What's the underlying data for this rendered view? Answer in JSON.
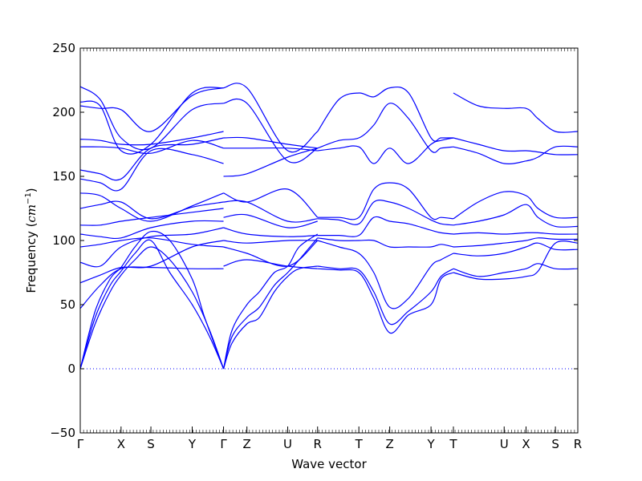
{
  "chart_data": {
    "type": "line",
    "title": "",
    "xlabel": "Wave vector",
    "ylabel": "Frequency",
    "ylabel_unit": "cm",
    "ylabel_unit_exponent": "−1",
    "ylim": [
      -50,
      250
    ],
    "yticks": [
      -50,
      0,
      50,
      100,
      150,
      200,
      250
    ],
    "ytick_labels": [
      "−50",
      "0",
      "50",
      "100",
      "150",
      "200",
      "250"
    ],
    "xlim": [
      0,
      100
    ],
    "kpoints": [
      {
        "label": "Γ",
        "x": 0
      },
      {
        "label": "X",
        "x": 8.2
      },
      {
        "label": "S",
        "x": 14.2
      },
      {
        "label": "Y",
        "x": 22.5
      },
      {
        "label": "Γ",
        "x": 28.8
      },
      {
        "label": "Z",
        "x": 33.5
      },
      {
        "label": "U",
        "x": 41.7
      },
      {
        "label": "R",
        "x": 47.7
      },
      {
        "label": "T",
        "x": 56.0
      },
      {
        "label": "Z",
        "x": 62.2
      },
      {
        "label": "Y",
        "x": 70.5
      },
      {
        "label": "T",
        "x": 75.0
      },
      {
        "label": "U",
        "x": 85.2
      },
      {
        "label": "X",
        "x": 89.6
      },
      {
        "label": "S",
        "x": 95.5
      },
      {
        "label": "R",
        "x": 100
      }
    ],
    "line_color": "#0000ff",
    "zero_line_color": "#0000ff",
    "series": [
      {
        "x": [
          0,
          3,
          6,
          8.2,
          11,
          14.2,
          18,
          22.5,
          26,
          28.8
        ],
        "values": [
          0,
          40,
          65,
          76,
          90,
          100,
          75,
          50,
          25,
          0
        ]
      },
      {
        "x": [
          0,
          3,
          6,
          8.2,
          11,
          14.2,
          18,
          22.5,
          26,
          28.8
        ],
        "values": [
          0,
          35,
          60,
          73,
          85,
          95,
          85,
          60,
          30,
          0
        ]
      },
      {
        "x": [
          0,
          3,
          6,
          8.2,
          11,
          14.2,
          18,
          22.5,
          25,
          28.8
        ],
        "values": [
          0,
          45,
          70,
          79,
          95,
          107,
          100,
          70,
          40,
          0
        ]
      },
      {
        "x": [
          28.8,
          30.5,
          33.5,
          36,
          39,
          41.7,
          44,
          47.7
        ],
        "values": [
          0,
          20,
          35,
          40,
          60,
          72,
          78,
          80
        ]
      },
      {
        "x": [
          28.8,
          30.5,
          33.5,
          36,
          39,
          41.7,
          44,
          47.7
        ],
        "values": [
          0,
          25,
          40,
          48,
          65,
          75,
          85,
          102
        ]
      },
      {
        "x": [
          28.8,
          30.5,
          33.5,
          36,
          39,
          41.7,
          44,
          47.7
        ],
        "values": [
          0,
          30,
          50,
          60,
          75,
          80,
          95,
          105
        ]
      },
      {
        "x": [
          0,
          4,
          8.2,
          14.2,
          22.5,
          28.8
        ],
        "values": [
          47,
          65,
          78,
          79,
          78,
          78
        ]
      },
      {
        "x": [
          0,
          4,
          8.2,
          14.2,
          22.5,
          28.8
        ],
        "values": [
          67,
          73,
          79,
          80,
          95,
          100
        ]
      },
      {
        "x": [
          0,
          4,
          8.2,
          14.2,
          22.5,
          28.8
        ],
        "values": [
          83,
          80,
          95,
          103,
          105,
          110
        ]
      },
      {
        "x": [
          0,
          4,
          8.2,
          14.2,
          22.5,
          28.8
        ],
        "values": [
          95,
          97,
          100,
          102,
          97,
          95
        ]
      },
      {
        "x": [
          0,
          4,
          8.2,
          14.2,
          22.5,
          28.8
        ],
        "values": [
          105,
          103,
          102,
          110,
          115,
          115
        ]
      },
      {
        "x": [
          0,
          4,
          8.2,
          14.2,
          22.5,
          28.8
        ],
        "values": [
          112,
          112,
          115,
          118,
          122,
          125
        ]
      },
      {
        "x": [
          0,
          4,
          8.2,
          14.2,
          22.5,
          28.8
        ],
        "values": [
          125,
          128,
          130,
          117,
          126,
          130
        ]
      },
      {
        "x": [
          0,
          4,
          8.2,
          14.2,
          22.5,
          28.8
        ],
        "values": [
          137,
          135,
          125,
          115,
          127,
          137
        ]
      },
      {
        "x": [
          0,
          4,
          8.2,
          14.2,
          22.5,
          28.8
        ],
        "values": [
          148,
          145,
          140,
          170,
          167,
          160
        ]
      },
      {
        "x": [
          0,
          4,
          8.2,
          14.2,
          22.5,
          28.8
        ],
        "values": [
          155,
          152,
          148,
          172,
          175,
          180
        ]
      },
      {
        "x": [
          0,
          4,
          8.2,
          14.2,
          22.5,
          28.8
        ],
        "values": [
          173,
          173,
          172,
          168,
          178,
          172
        ]
      },
      {
        "x": [
          0,
          4,
          8.2,
          14.2,
          22.5,
          28.8
        ],
        "values": [
          179,
          178,
          175,
          175,
          180,
          185
        ]
      },
      {
        "x": [
          0,
          4,
          8.2,
          14.2,
          22.5,
          28.8
        ],
        "values": [
          205,
          203,
          202,
          185,
          213,
          219
        ]
      },
      {
        "x": [
          0,
          4,
          8.2,
          14.2,
          22.5,
          28.8
        ],
        "values": [
          208,
          205,
          170,
          175,
          215,
          219
        ]
      },
      {
        "x": [
          0,
          4,
          8.2,
          14.2,
          22.5,
          28.8
        ],
        "values": [
          220,
          210,
          180,
          172,
          202,
          207
        ]
      },
      {
        "x": [
          28.8,
          33.5,
          41.7,
          47.7
        ],
        "values": [
          219,
          219,
          170,
          185
        ]
      },
      {
        "x": [
          28.8,
          33.5,
          41.7,
          47.7
        ],
        "values": [
          207,
          207,
          162,
          172
        ]
      },
      {
        "x": [
          28.8,
          33.5,
          41.7,
          47.7
        ],
        "values": [
          180,
          180,
          175,
          172
        ]
      },
      {
        "x": [
          28.8,
          33.5,
          41.7,
          47.7
        ],
        "values": [
          172,
          172,
          172,
          170
        ]
      },
      {
        "x": [
          28.8,
          33.5,
          41.7,
          47.7
        ],
        "values": [
          150,
          152,
          165,
          172
        ]
      },
      {
        "x": [
          28.8,
          33.5,
          41.7,
          47.7
        ],
        "values": [
          137,
          130,
          140,
          118
        ]
      },
      {
        "x": [
          28.8,
          33.5,
          41.7,
          47.7
        ],
        "values": [
          130,
          130,
          115,
          117
        ]
      },
      {
        "x": [
          28.8,
          33.5,
          41.7,
          47.7
        ],
        "values": [
          118,
          120,
          110,
          115
        ]
      },
      {
        "x": [
          28.8,
          33.5,
          41.7,
          47.7
        ],
        "values": [
          110,
          105,
          103,
          104
        ]
      },
      {
        "x": [
          28.8,
          33.5,
          41.7,
          47.7
        ],
        "values": [
          100,
          98,
          100,
          100
        ]
      },
      {
        "x": [
          28.8,
          33.5,
          41.7,
          47.7
        ],
        "values": [
          95,
          90,
          80,
          100
        ]
      },
      {
        "x": [
          28.8,
          33.5,
          41.7,
          47.7
        ],
        "values": [
          80,
          85,
          80,
          78
        ]
      },
      {
        "x": [
          47.7,
          52,
          56.0,
          59,
          62.2,
          66,
          70.5,
          72.5,
          75.0
        ],
        "values": [
          185,
          210,
          215,
          212,
          219,
          215,
          180,
          180,
          180
        ]
      },
      {
        "x": [
          47.7,
          52,
          56.0,
          59,
          62.2,
          66,
          70.5,
          72.5,
          75.0
        ],
        "values": [
          172,
          178,
          180,
          190,
          207,
          195,
          170,
          172,
          173
        ]
      },
      {
        "x": [
          47.7,
          52,
          56.0,
          59,
          62.2,
          66,
          70.5,
          72.5,
          75.0
        ],
        "values": [
          170,
          172,
          173,
          160,
          172,
          160,
          175,
          178,
          180
        ]
      },
      {
        "x": [
          47.7,
          52,
          56.0,
          59,
          62.2,
          66,
          70.5,
          72.5,
          75.0
        ],
        "values": [
          118,
          118,
          118,
          140,
          145,
          140,
          118,
          118,
          117
        ]
      },
      {
        "x": [
          47.7,
          52,
          56.0,
          59,
          62.2,
          66,
          70.5,
          72.5,
          75.0
        ],
        "values": [
          117,
          116,
          113,
          130,
          130,
          125,
          116,
          113,
          112
        ]
      },
      {
        "x": [
          47.7,
          52,
          56.0,
          59,
          62.2,
          66,
          70.5,
          72.5,
          75.0
        ],
        "values": [
          104,
          104,
          104,
          118,
          115,
          113,
          108,
          106,
          105
        ]
      },
      {
        "x": [
          47.7,
          52,
          56.0,
          59,
          62.2,
          66,
          70.5,
          72.5,
          75.0
        ],
        "values": [
          102,
          100,
          100,
          100,
          95,
          95,
          95,
          97,
          95
        ]
      },
      {
        "x": [
          47.7,
          52,
          56.0,
          59,
          62.2,
          66,
          70.5,
          72.5,
          75.0
        ],
        "values": [
          100,
          95,
          90,
          75,
          48,
          55,
          80,
          85,
          90
        ]
      },
      {
        "x": [
          47.7,
          52,
          56.0,
          59,
          62.2,
          66,
          70.5,
          72.5,
          75.0
        ],
        "values": [
          80,
          78,
          77,
          60,
          35,
          45,
          60,
          72,
          78
        ]
      },
      {
        "x": [
          47.7,
          52,
          56.0,
          59,
          62.2,
          66,
          70.5,
          72.5,
          75.0
        ],
        "values": [
          78,
          77,
          75,
          55,
          28,
          42,
          50,
          70,
          75
        ]
      },
      {
        "x": [
          75.0,
          80,
          85.2,
          89.6,
          92,
          95.5,
          100
        ],
        "values": [
          215,
          205,
          203,
          203,
          195,
          185,
          185
        ]
      },
      {
        "x": [
          75.0,
          80,
          85.2,
          89.6,
          92,
          95.5,
          100
        ],
        "values": [
          180,
          175,
          170,
          170,
          169,
          167,
          167
        ]
      },
      {
        "x": [
          75.0,
          80,
          85.2,
          89.6,
          92,
          95.5,
          100
        ],
        "values": [
          173,
          168,
          160,
          162,
          165,
          173,
          173
        ]
      },
      {
        "x": [
          75.0,
          80,
          85.2,
          89.6,
          92,
          95.5,
          100
        ],
        "values": [
          117,
          130,
          138,
          135,
          125,
          118,
          118
        ]
      },
      {
        "x": [
          75.0,
          80,
          85.2,
          89.6,
          92,
          95.5,
          100
        ],
        "values": [
          112,
          115,
          120,
          128,
          118,
          111,
          111
        ]
      },
      {
        "x": [
          75.0,
          80,
          85.2,
          89.6,
          92,
          95.5,
          100
        ],
        "values": [
          105,
          106,
          105,
          106,
          106,
          105,
          105
        ]
      },
      {
        "x": [
          75.0,
          80,
          85.2,
          89.6,
          92,
          95.5,
          100
        ],
        "values": [
          95,
          96,
          98,
          100,
          102,
          101,
          101
        ]
      },
      {
        "x": [
          75.0,
          80,
          85.2,
          89.6,
          92,
          95.5,
          100
        ],
        "values": [
          90,
          88,
          90,
          95,
          98,
          93,
          93
        ]
      },
      {
        "x": [
          75.0,
          80,
          85.2,
          89.6,
          92,
          95.5,
          100
        ],
        "values": [
          78,
          72,
          75,
          78,
          82,
          78,
          78
        ]
      },
      {
        "x": [
          75.0,
          80,
          85.2,
          89.6,
          92,
          95.5,
          100
        ],
        "values": [
          75,
          70,
          70,
          72,
          76,
          98,
          98
        ]
      }
    ]
  }
}
